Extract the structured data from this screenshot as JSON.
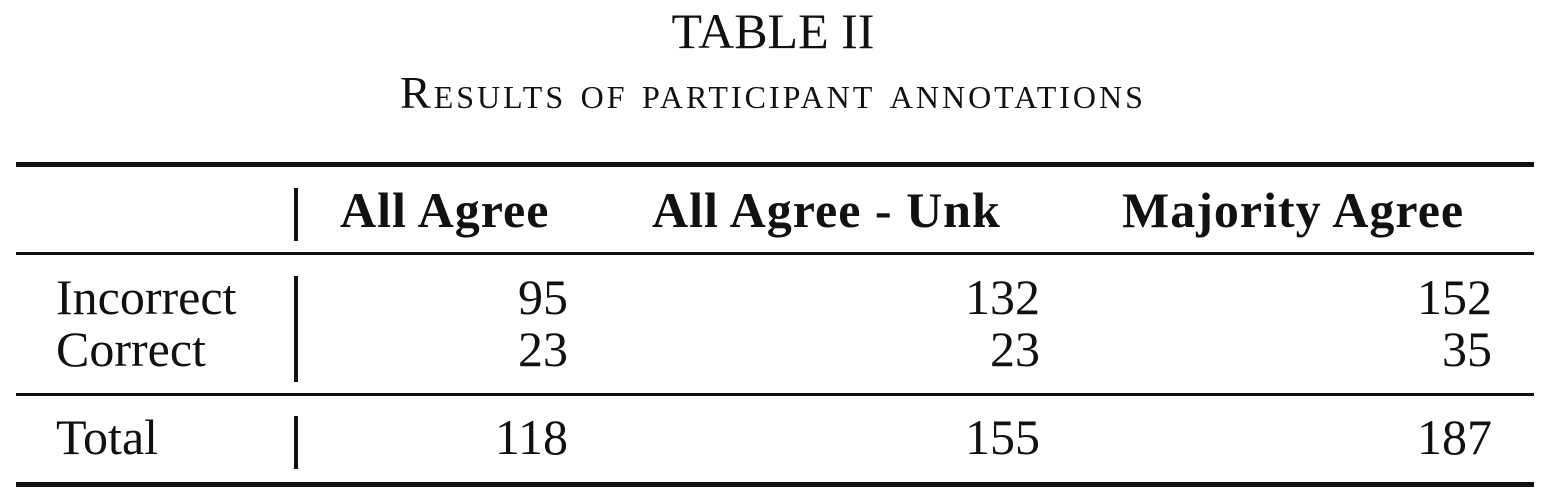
{
  "caption": {
    "number": "TABLE II",
    "title": "Results of participant annotations"
  },
  "table": {
    "columns": [
      "All Agree",
      "All Agree - Unk",
      "Majority Agree"
    ],
    "rows": [
      {
        "label": "Incorrect",
        "values": [
          "95",
          "132",
          "152"
        ]
      },
      {
        "label": "Correct",
        "values": [
          "23",
          "23",
          "35"
        ]
      }
    ],
    "total": {
      "label": "Total",
      "values": [
        "118",
        "155",
        "187"
      ]
    }
  }
}
